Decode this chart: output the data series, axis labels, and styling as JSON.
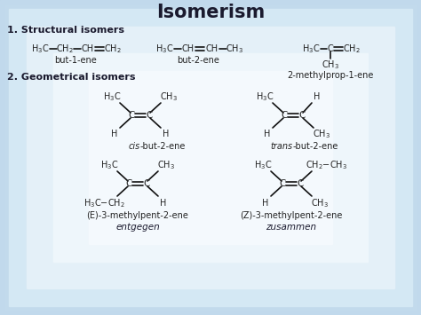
{
  "title": "Isomerism",
  "section1_label": "1. Structural isomers",
  "section2_label": "2. Geometrical isomers",
  "name1": "but-1-ene",
  "name2": "but-2-ene",
  "name3": "2-methylprop-1-ene",
  "name4": "cis-but-2-ene",
  "name5": "trans-but-2-ene",
  "name6": "(E)-3-methylpent-2-ene",
  "name7": "(Z)-3-methylpent-2-ene",
  "german1": "entgegen",
  "german2": "zusammen",
  "bg_edge": "#a8cce0",
  "bg_mid": "#e8f4fa",
  "text_color": "#333333"
}
